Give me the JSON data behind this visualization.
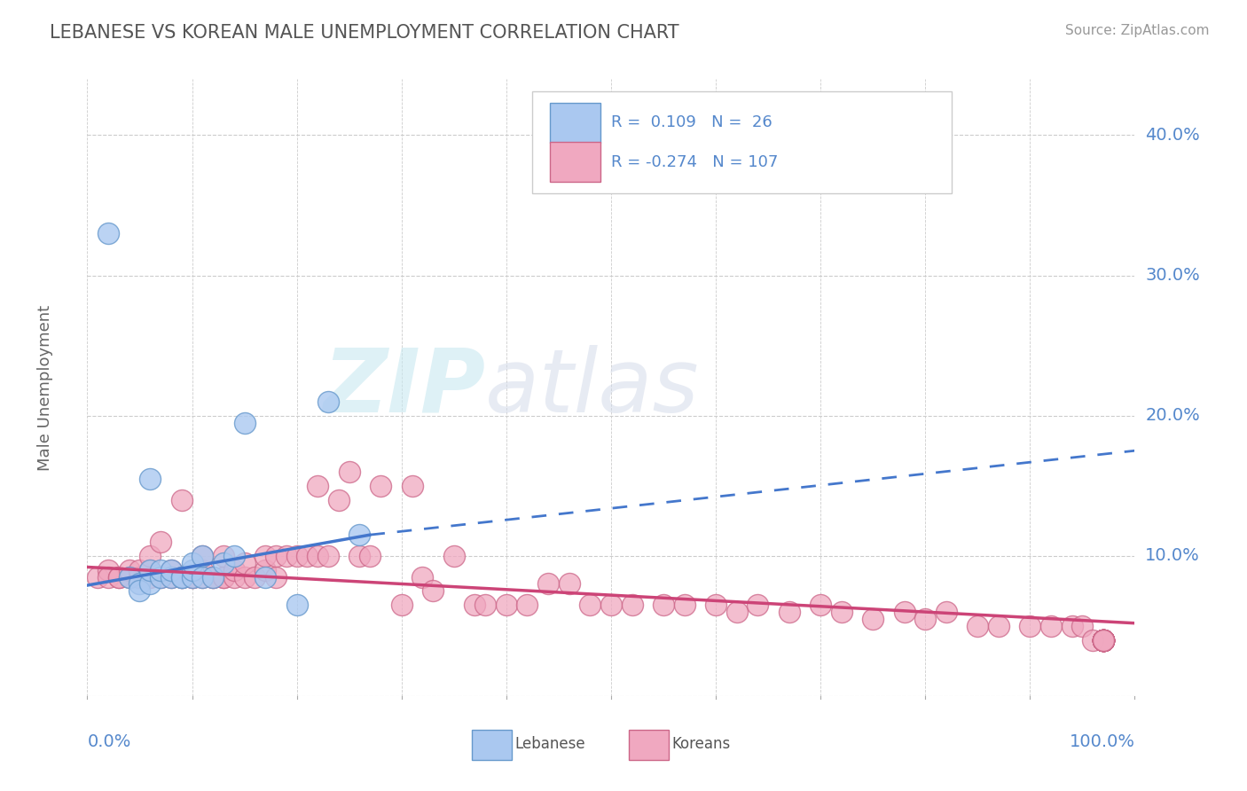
{
  "title": "LEBANESE VS KOREAN MALE UNEMPLOYMENT CORRELATION CHART",
  "source": "Source: ZipAtlas.com",
  "ylabel": "Male Unemployment",
  "yticks": [
    0.0,
    0.1,
    0.2,
    0.3,
    0.4
  ],
  "ytick_labels": [
    "",
    "10.0%",
    "20.0%",
    "30.0%",
    "40.0%"
  ],
  "xlim": [
    0.0,
    1.0
  ],
  "ylim": [
    0.0,
    0.44
  ],
  "watermark_zip": "ZIP",
  "watermark_atlas": "atlas",
  "lebanese_color": "#aac8f0",
  "korean_color": "#f0a8c0",
  "lebanese_edge_color": "#6699cc",
  "korean_edge_color": "#cc6688",
  "lebanese_line_color": "#4477cc",
  "korean_line_color": "#cc4477",
  "background_color": "#ffffff",
  "grid_color": "#cccccc",
  "title_color": "#555555",
  "axis_label_color": "#5588cc",
  "lebanese_R": 0.109,
  "lebanese_N": 26,
  "korean_R": -0.274,
  "korean_N": 107,
  "leb_line_x0": 0.0,
  "leb_line_y0": 0.079,
  "leb_line_x1": 0.27,
  "leb_line_y1": 0.115,
  "leb_line_dash_x0": 0.27,
  "leb_line_dash_y0": 0.115,
  "leb_line_dash_x1": 1.0,
  "leb_line_dash_y1": 0.175,
  "kor_line_x0": 0.0,
  "kor_line_y0": 0.092,
  "kor_line_x1": 1.0,
  "kor_line_y1": 0.052,
  "lebanese_x": [
    0.02,
    0.04,
    0.05,
    0.05,
    0.06,
    0.06,
    0.06,
    0.07,
    0.07,
    0.08,
    0.08,
    0.09,
    0.09,
    0.1,
    0.1,
    0.1,
    0.11,
    0.11,
    0.12,
    0.13,
    0.14,
    0.15,
    0.17,
    0.2,
    0.23,
    0.26
  ],
  "lebanese_y": [
    0.33,
    0.085,
    0.08,
    0.075,
    0.08,
    0.155,
    0.09,
    0.085,
    0.09,
    0.085,
    0.09,
    0.085,
    0.085,
    0.085,
    0.09,
    0.095,
    0.085,
    0.1,
    0.085,
    0.095,
    0.1,
    0.195,
    0.085,
    0.065,
    0.21,
    0.115
  ],
  "korean_x": [
    0.01,
    0.02,
    0.02,
    0.03,
    0.03,
    0.04,
    0.04,
    0.05,
    0.05,
    0.06,
    0.06,
    0.06,
    0.07,
    0.07,
    0.08,
    0.08,
    0.09,
    0.09,
    0.09,
    0.1,
    0.1,
    0.11,
    0.11,
    0.11,
    0.12,
    0.12,
    0.13,
    0.13,
    0.13,
    0.14,
    0.14,
    0.15,
    0.15,
    0.16,
    0.17,
    0.17,
    0.18,
    0.18,
    0.19,
    0.2,
    0.21,
    0.22,
    0.22,
    0.23,
    0.24,
    0.25,
    0.26,
    0.27,
    0.28,
    0.3,
    0.31,
    0.32,
    0.33,
    0.35,
    0.37,
    0.38,
    0.4,
    0.42,
    0.44,
    0.46,
    0.48,
    0.5,
    0.52,
    0.55,
    0.57,
    0.6,
    0.62,
    0.64,
    0.67,
    0.7,
    0.72,
    0.75,
    0.78,
    0.8,
    0.82,
    0.85,
    0.87,
    0.9,
    0.92,
    0.94,
    0.95,
    0.96,
    0.97,
    0.97,
    0.97,
    0.97,
    0.97,
    0.97,
    0.97,
    0.97,
    0.97,
    0.97,
    0.97,
    0.97,
    0.97,
    0.97,
    0.97,
    0.97,
    0.97,
    0.97,
    0.97,
    0.97,
    0.97,
    0.97,
    0.97,
    0.97,
    0.97
  ],
  "korean_y": [
    0.085,
    0.09,
    0.085,
    0.085,
    0.085,
    0.085,
    0.09,
    0.085,
    0.09,
    0.085,
    0.09,
    0.1,
    0.085,
    0.11,
    0.09,
    0.085,
    0.085,
    0.14,
    0.085,
    0.085,
    0.085,
    0.085,
    0.09,
    0.1,
    0.085,
    0.085,
    0.085,
    0.085,
    0.1,
    0.085,
    0.09,
    0.085,
    0.095,
    0.085,
    0.09,
    0.1,
    0.085,
    0.1,
    0.1,
    0.1,
    0.1,
    0.1,
    0.15,
    0.1,
    0.14,
    0.16,
    0.1,
    0.1,
    0.15,
    0.065,
    0.15,
    0.085,
    0.075,
    0.1,
    0.065,
    0.065,
    0.065,
    0.065,
    0.08,
    0.08,
    0.065,
    0.065,
    0.065,
    0.065,
    0.065,
    0.065,
    0.06,
    0.065,
    0.06,
    0.065,
    0.06,
    0.055,
    0.06,
    0.055,
    0.06,
    0.05,
    0.05,
    0.05,
    0.05,
    0.05,
    0.05,
    0.04,
    0.04,
    0.04,
    0.04,
    0.04,
    0.04,
    0.04,
    0.04,
    0.04,
    0.04,
    0.04,
    0.04,
    0.04,
    0.04,
    0.04,
    0.04,
    0.04,
    0.04,
    0.04,
    0.04,
    0.04,
    0.04,
    0.04,
    0.04,
    0.04,
    0.04
  ]
}
